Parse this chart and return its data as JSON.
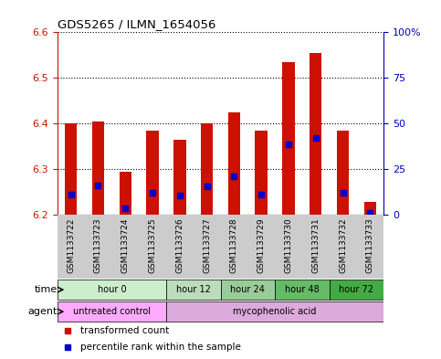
{
  "title": "GDS5265 / ILMN_1654056",
  "samples": [
    "GSM1133722",
    "GSM1133723",
    "GSM1133724",
    "GSM1133725",
    "GSM1133726",
    "GSM1133727",
    "GSM1133728",
    "GSM1133729",
    "GSM1133730",
    "GSM1133731",
    "GSM1133732",
    "GSM1133733"
  ],
  "bar_bottom": 6.2,
  "bar_tops": [
    6.4,
    6.405,
    6.295,
    6.385,
    6.365,
    6.4,
    6.425,
    6.385,
    6.535,
    6.555,
    6.385,
    6.228
  ],
  "blue_dots": [
    6.245,
    6.265,
    6.215,
    6.248,
    6.242,
    6.262,
    6.285,
    6.245,
    6.355,
    6.368,
    6.248,
    6.205
  ],
  "ylim_left": [
    6.2,
    6.6
  ],
  "yticks_left": [
    6.2,
    6.3,
    6.4,
    6.5,
    6.6
  ],
  "ylim_right": [
    0,
    100
  ],
  "yticks_right": [
    0,
    25,
    50,
    75,
    100
  ],
  "ytick_labels_right": [
    "0",
    "25",
    "50",
    "75",
    "100%"
  ],
  "bar_color": "#cc1100",
  "dot_color": "#0000cc",
  "time_groups": [
    {
      "label": "hour 0",
      "start": 0,
      "end": 4,
      "color": "#cceecc"
    },
    {
      "label": "hour 12",
      "start": 4,
      "end": 6,
      "color": "#bbddbb"
    },
    {
      "label": "hour 24",
      "start": 6,
      "end": 8,
      "color": "#99cc99"
    },
    {
      "label": "hour 48",
      "start": 8,
      "end": 10,
      "color": "#66bb66"
    },
    {
      "label": "hour 72",
      "start": 10,
      "end": 12,
      "color": "#44aa44"
    }
  ],
  "agent_groups": [
    {
      "label": "untreated control",
      "start": 0,
      "end": 4,
      "color": "#ffaaff"
    },
    {
      "label": "mycophenolic acid",
      "start": 4,
      "end": 12,
      "color": "#ddaadd"
    }
  ],
  "left_axis_color": "#cc1100",
  "right_axis_color": "#0000bb",
  "sample_bg_color": "#cccccc",
  "bg_color": "#ffffff",
  "bar_width": 0.45
}
